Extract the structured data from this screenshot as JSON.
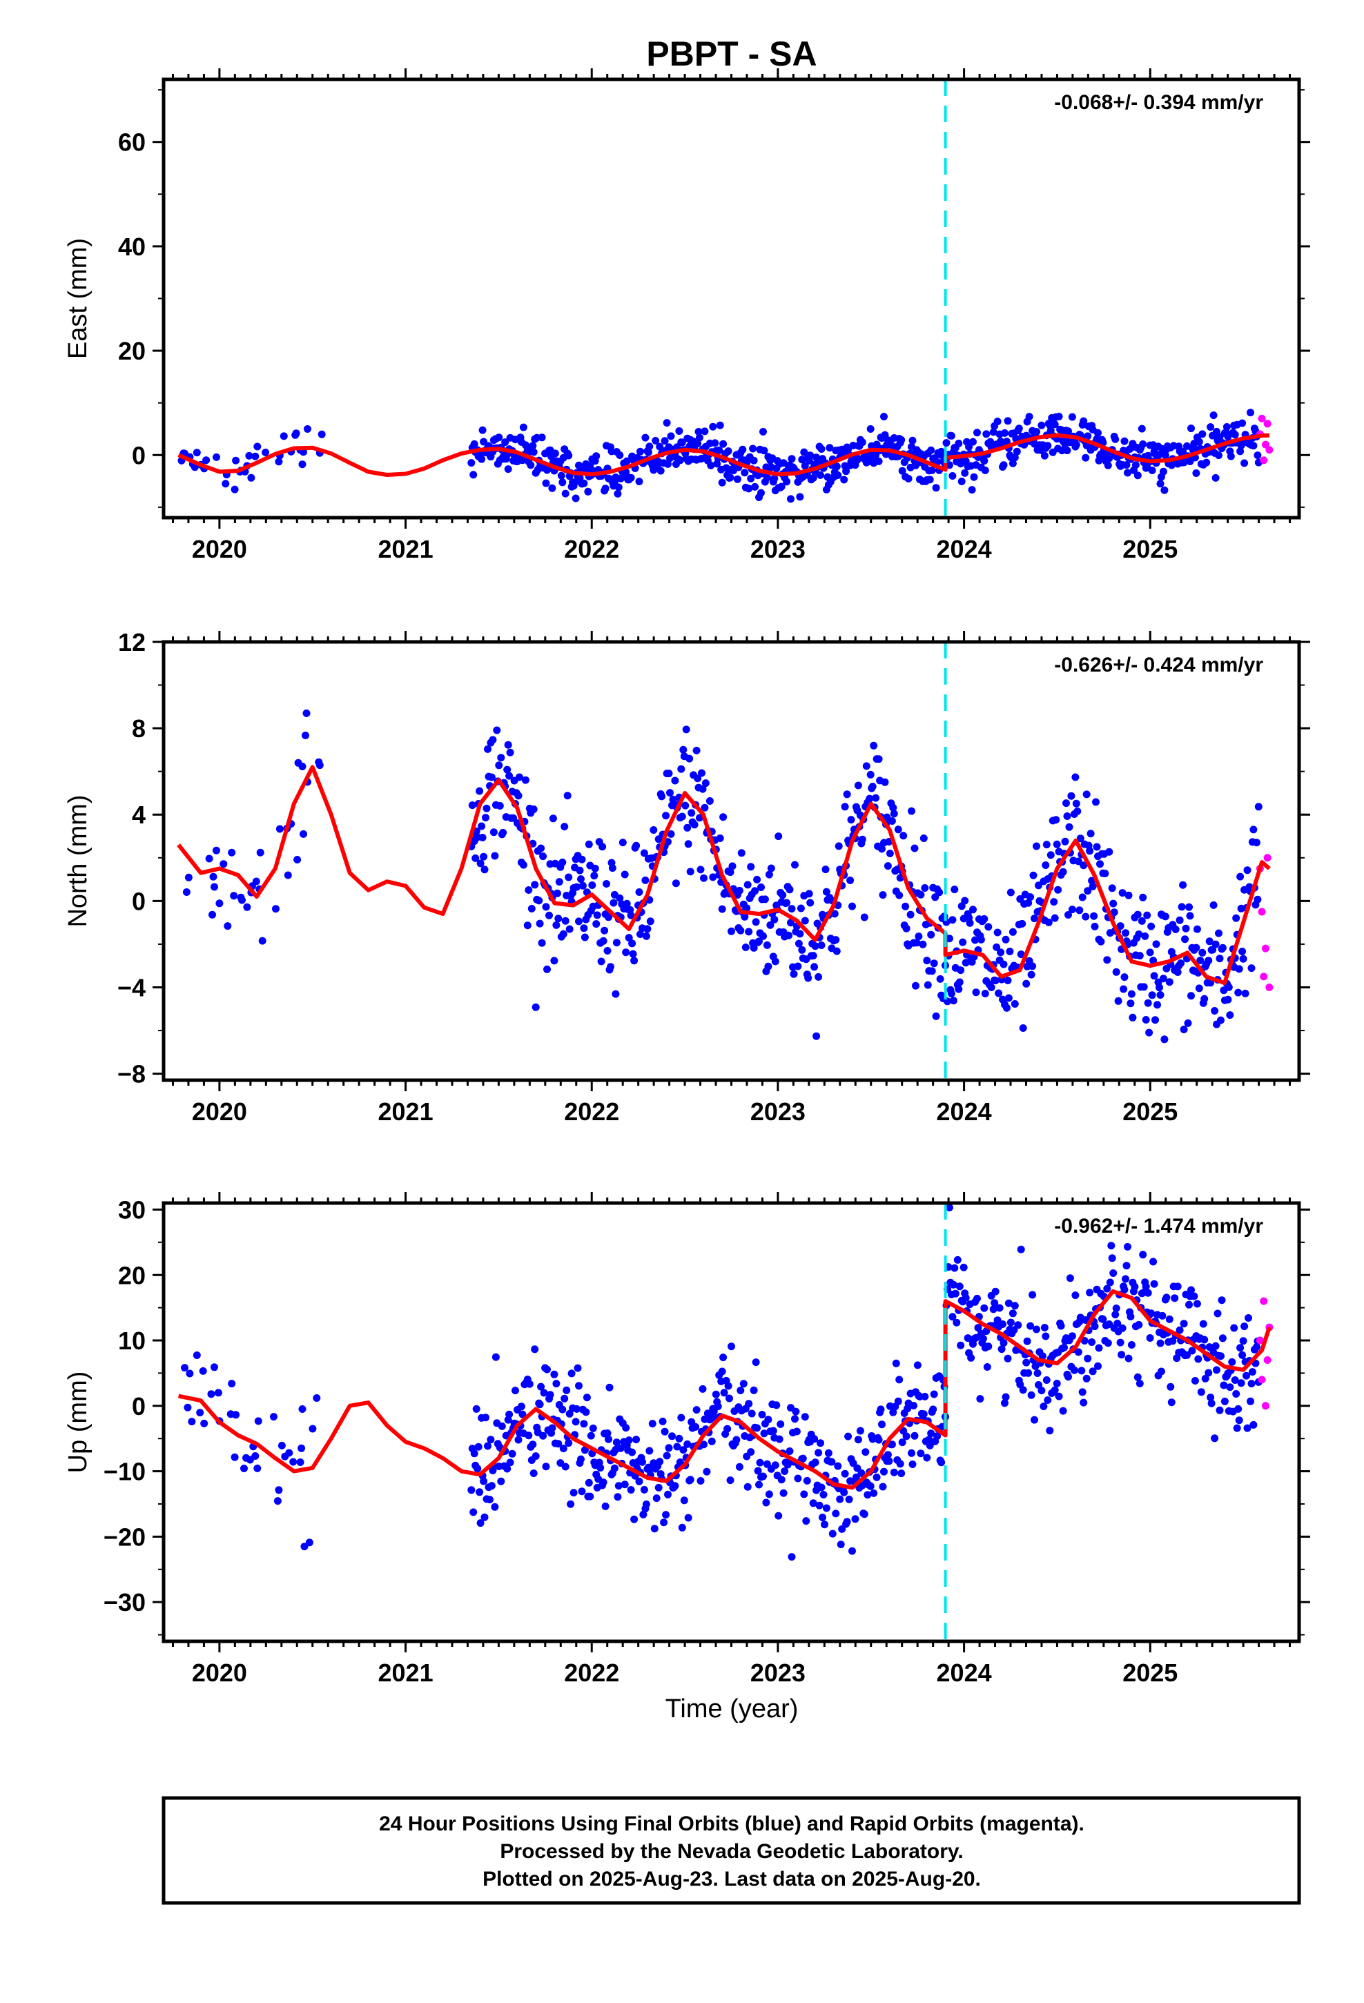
{
  "title": "PBPT - SA",
  "xlabel": "Time (year)",
  "footer": [
    "24 Hour Positions Using Final Orbits (blue) and Rapid Orbits (magenta).",
    "Processed by the Nevada Geodetic Laboratory.",
    "Plotted on 2025-Aug-23. Last data on 2025-Aug-20."
  ],
  "colors": {
    "final": "#0000ff",
    "rapid": "#ff00ff",
    "fit": "#ff0000",
    "offset": "#00e5ee"
  },
  "chart_data": [
    {
      "type": "scatter",
      "ylabel": "East (mm)",
      "rate": "-0.068+/- 0.394 mm/yr",
      "xlim": [
        2019.7,
        2025.8
      ],
      "ylim": [
        -12,
        72
      ],
      "yticks": [
        0,
        20,
        40,
        60
      ],
      "xticks": [
        2020,
        2021,
        2022,
        2023,
        2024,
        2025
      ],
      "offset_epoch": 2023.9,
      "fit": {
        "x": [
          2019.78,
          2019.9,
          2020.0,
          2020.1,
          2020.2,
          2020.3,
          2020.4,
          2020.5,
          2020.6,
          2020.7,
          2020.8,
          2020.9,
          2021.0,
          2021.1,
          2021.2,
          2021.3,
          2021.4,
          2021.5,
          2021.6,
          2021.7,
          2021.8,
          2021.9,
          2022.0,
          2022.1,
          2022.2,
          2022.3,
          2022.4,
          2022.5,
          2022.6,
          2022.7,
          2022.8,
          2022.9,
          2023.0,
          2023.1,
          2023.2,
          2023.3,
          2023.4,
          2023.5,
          2023.6,
          2023.7,
          2023.8,
          2023.9,
          2023.9,
          2024.0,
          2024.1,
          2024.2,
          2024.3,
          2024.4,
          2024.5,
          2024.6,
          2024.7,
          2024.8,
          2024.9,
          2025.0,
          2025.1,
          2025.2,
          2025.3,
          2025.4,
          2025.5,
          2025.6,
          2025.64
        ],
        "y": [
          0.0,
          -1.9,
          -3.2,
          -3.0,
          -1.5,
          0.2,
          1.3,
          1.4,
          0.3,
          -1.5,
          -3.2,
          -3.8,
          -3.6,
          -2.6,
          -1.0,
          0.3,
          1.0,
          1.2,
          0.5,
          -0.9,
          -2.3,
          -3.4,
          -3.7,
          -3.2,
          -2.2,
          -0.8,
          0.4,
          1.0,
          0.7,
          -0.4,
          -1.8,
          -3.0,
          -3.7,
          -3.5,
          -2.6,
          -1.3,
          0.1,
          1.0,
          0.9,
          0.0,
          -1.4,
          -2.8,
          -0.5,
          -0.2,
          0.3,
          1.3,
          2.5,
          3.4,
          3.8,
          3.4,
          2.2,
          0.7,
          -0.6,
          -1.2,
          -1.0,
          -0.2,
          1.0,
          2.2,
          3.2,
          3.7,
          3.8
        ]
      },
      "rapid": {
        "x": [
          2025.59,
          2025.6,
          2025.61,
          2025.62,
          2025.63,
          2025.64
        ],
        "y": [
          4,
          7,
          -1,
          2,
          6,
          1
        ]
      }
    },
    {
      "type": "scatter",
      "ylabel": "North (mm)",
      "rate": "-0.626+/- 0.424 mm/yr",
      "xlim": [
        2019.7,
        2025.8
      ],
      "ylim": [
        -8.3,
        12
      ],
      "yticks": [
        -8,
        -4,
        0,
        4,
        8,
        12
      ],
      "xticks": [
        2020,
        2021,
        2022,
        2023,
        2024,
        2025
      ],
      "offset_epoch": 2023.9,
      "fit": {
        "x": [
          2019.78,
          2019.9,
          2020.0,
          2020.1,
          2020.2,
          2020.3,
          2020.4,
          2020.5,
          2020.6,
          2020.7,
          2020.8,
          2020.9,
          2021.0,
          2021.1,
          2021.2,
          2021.3,
          2021.4,
          2021.5,
          2021.6,
          2021.7,
          2021.8,
          2021.9,
          2022.0,
          2022.1,
          2022.2,
          2022.3,
          2022.4,
          2022.5,
          2022.6,
          2022.7,
          2022.8,
          2022.9,
          2023.0,
          2023.1,
          2023.2,
          2023.3,
          2023.4,
          2023.5,
          2023.6,
          2023.7,
          2023.8,
          2023.9,
          2023.9,
          2024.0,
          2024.1,
          2024.2,
          2024.3,
          2024.4,
          2024.5,
          2024.6,
          2024.7,
          2024.8,
          2024.9,
          2025.0,
          2025.1,
          2025.2,
          2025.3,
          2025.4,
          2025.5,
          2025.6,
          2025.64
        ],
        "y": [
          2.6,
          1.3,
          1.5,
          1.2,
          0.2,
          1.5,
          4.5,
          6.2,
          4.0,
          1.3,
          0.5,
          0.9,
          0.7,
          -0.3,
          -0.6,
          1.5,
          4.5,
          5.6,
          4.3,
          1.5,
          -0.1,
          -0.2,
          0.3,
          -0.5,
          -1.3,
          0.3,
          3.2,
          5.0,
          4.0,
          1.2,
          -0.5,
          -0.6,
          -0.4,
          -0.9,
          -1.8,
          -0.2,
          2.8,
          4.5,
          3.3,
          0.6,
          -0.8,
          -1.5,
          -2.5,
          -2.3,
          -2.5,
          -3.5,
          -3.2,
          -1.0,
          1.5,
          2.8,
          1.2,
          -1.0,
          -2.8,
          -3.0,
          -2.8,
          -2.4,
          -3.5,
          -3.8,
          -1.0,
          1.8,
          1.5
        ]
      },
      "rapid": {
        "x": [
          2025.59,
          2025.6,
          2025.61,
          2025.62,
          2025.63,
          2025.64
        ],
        "y": [
          1.5,
          -0.5,
          -3.5,
          -2.2,
          2.0,
          -4.0
        ]
      }
    },
    {
      "type": "scatter",
      "ylabel": "Up (mm)",
      "rate": "-0.962+/- 1.474 mm/yr",
      "xlim": [
        2019.7,
        2025.8
      ],
      "ylim": [
        -36,
        31
      ],
      "yticks": [
        -30,
        -20,
        -10,
        0,
        10,
        20,
        30
      ],
      "xticks": [
        2020,
        2021,
        2022,
        2023,
        2024,
        2025
      ],
      "offset_epoch": 2023.9,
      "fit": {
        "x": [
          2019.78,
          2019.9,
          2020.0,
          2020.1,
          2020.2,
          2020.3,
          2020.4,
          2020.5,
          2020.6,
          2020.7,
          2020.8,
          2020.9,
          2021.0,
          2021.1,
          2021.2,
          2021.3,
          2021.4,
          2021.5,
          2021.6,
          2021.7,
          2021.8,
          2021.9,
          2022.0,
          2022.1,
          2022.2,
          2022.3,
          2022.4,
          2022.5,
          2022.6,
          2022.7,
          2022.8,
          2022.9,
          2023.0,
          2023.1,
          2023.2,
          2023.3,
          2023.4,
          2023.5,
          2023.6,
          2023.7,
          2023.8,
          2023.9,
          2023.9,
          2024.0,
          2024.1,
          2024.2,
          2024.3,
          2024.4,
          2024.5,
          2024.6,
          2024.7,
          2024.8,
          2024.9,
          2025.0,
          2025.1,
          2025.2,
          2025.3,
          2025.4,
          2025.5,
          2025.6,
          2025.64
        ],
        "y": [
          1.5,
          0.8,
          -2.5,
          -4.5,
          -5.8,
          -8.0,
          -10.0,
          -9.5,
          -5.0,
          0.0,
          0.5,
          -3.0,
          -5.5,
          -6.5,
          -8.0,
          -10.0,
          -10.5,
          -8.0,
          -3.0,
          -0.5,
          -2.5,
          -5.0,
          -6.5,
          -8.0,
          -9.5,
          -11.0,
          -11.5,
          -9.0,
          -4.5,
          -1.5,
          -2.5,
          -5.0,
          -7.0,
          -8.5,
          -10.0,
          -12.0,
          -12.5,
          -10.0,
          -5.0,
          -2.0,
          -2.5,
          -4.5,
          16.0,
          14.5,
          12.5,
          11.0,
          9.0,
          7.0,
          6.5,
          9.0,
          14.0,
          17.5,
          16.5,
          13.0,
          11.5,
          10.0,
          8.0,
          6.0,
          5.5,
          8.5,
          12.0
        ]
      },
      "rapid": {
        "x": [
          2025.59,
          2025.6,
          2025.61,
          2025.62,
          2025.63,
          2025.64
        ],
        "y": [
          10,
          4,
          16,
          0,
          7,
          12
        ]
      }
    }
  ]
}
